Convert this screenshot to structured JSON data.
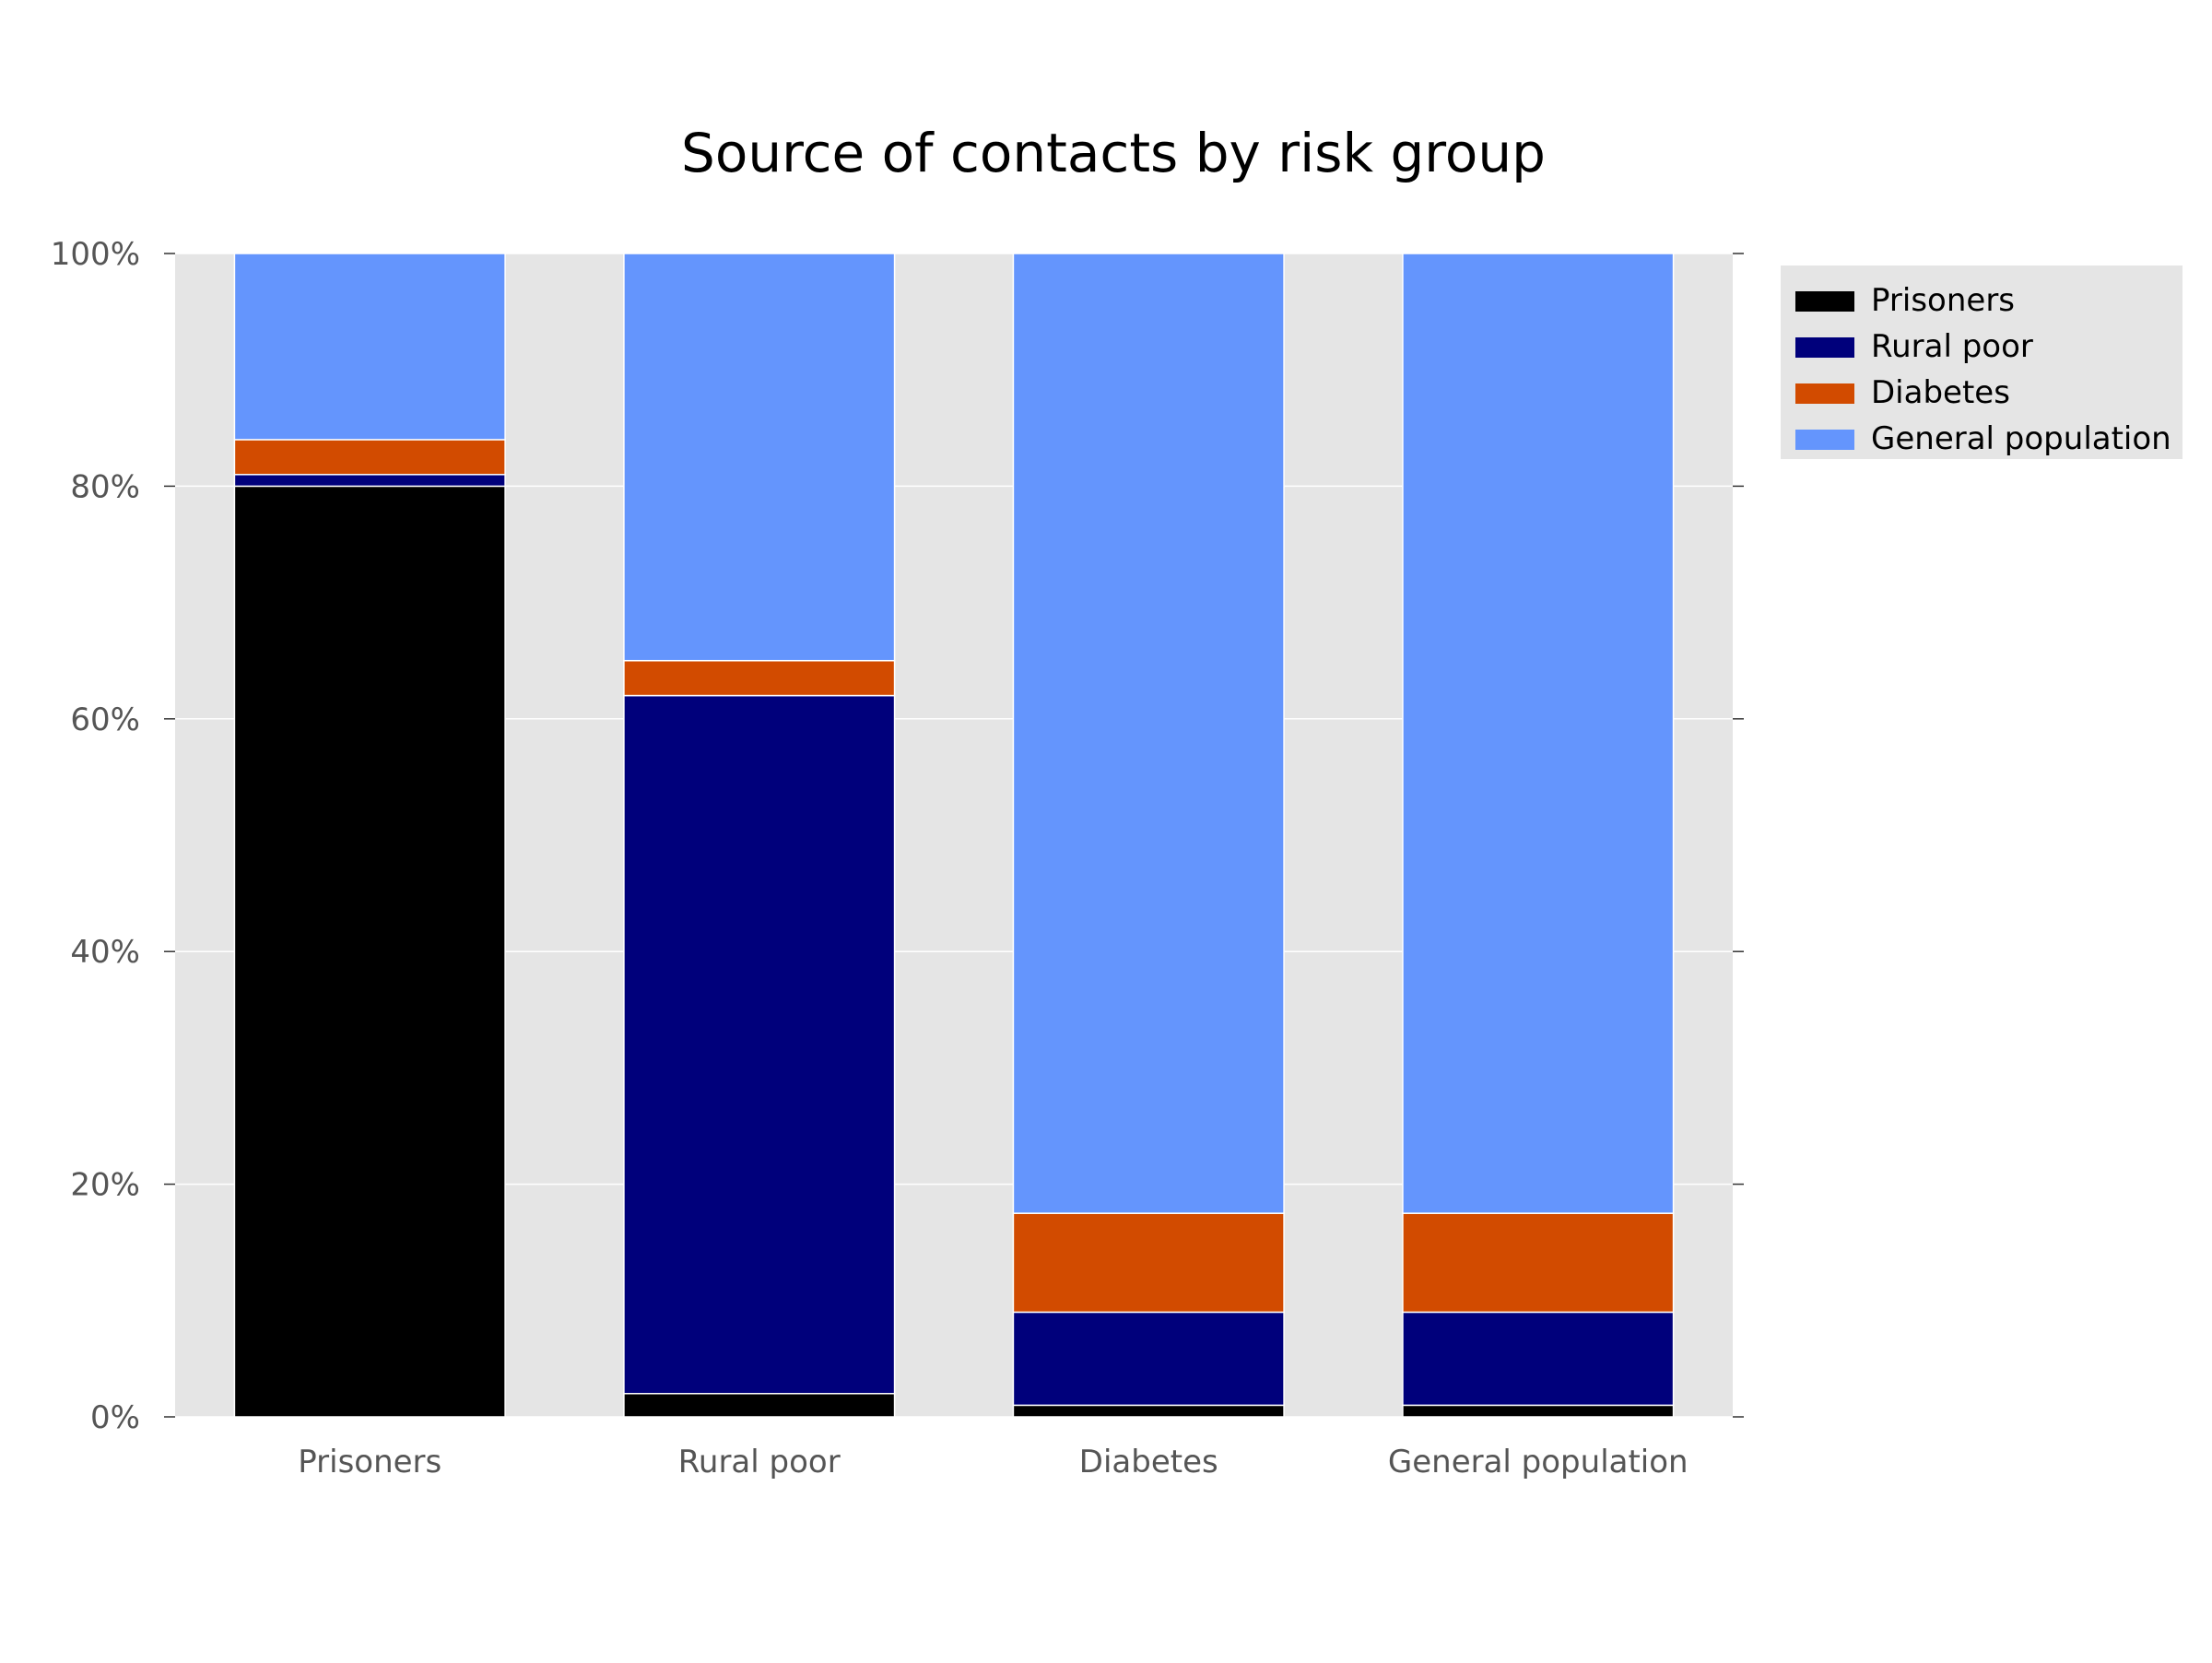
{
  "chart_data": {
    "type": "bar",
    "stacked": true,
    "title": "Source of contacts by risk group",
    "xlabel": "",
    "ylabel": "",
    "categories": [
      "Prisoners",
      "Rural poor",
      "Diabetes",
      "General population"
    ],
    "ylim": [
      0,
      100
    ],
    "yticks": [
      0,
      20,
      40,
      60,
      80,
      100
    ],
    "ytick_labels": [
      "0%",
      "20%",
      "40%",
      "60%",
      "80%",
      "100%"
    ],
    "grid": true,
    "background": "#e5e5e5",
    "legend_position": "outside-top-right",
    "series": [
      {
        "name": "Prisoners",
        "color": "#000000",
        "values": [
          80,
          2,
          1,
          1
        ]
      },
      {
        "name": "Rural poor",
        "color": "#00007b",
        "values": [
          1,
          60,
          8,
          8
        ]
      },
      {
        "name": "Diabetes",
        "color": "#d24b00",
        "values": [
          3,
          3,
          8.5,
          8.5
        ]
      },
      {
        "name": "General population",
        "color": "#6495fd",
        "values": [
          16,
          35,
          82.5,
          82.5
        ]
      }
    ]
  }
}
